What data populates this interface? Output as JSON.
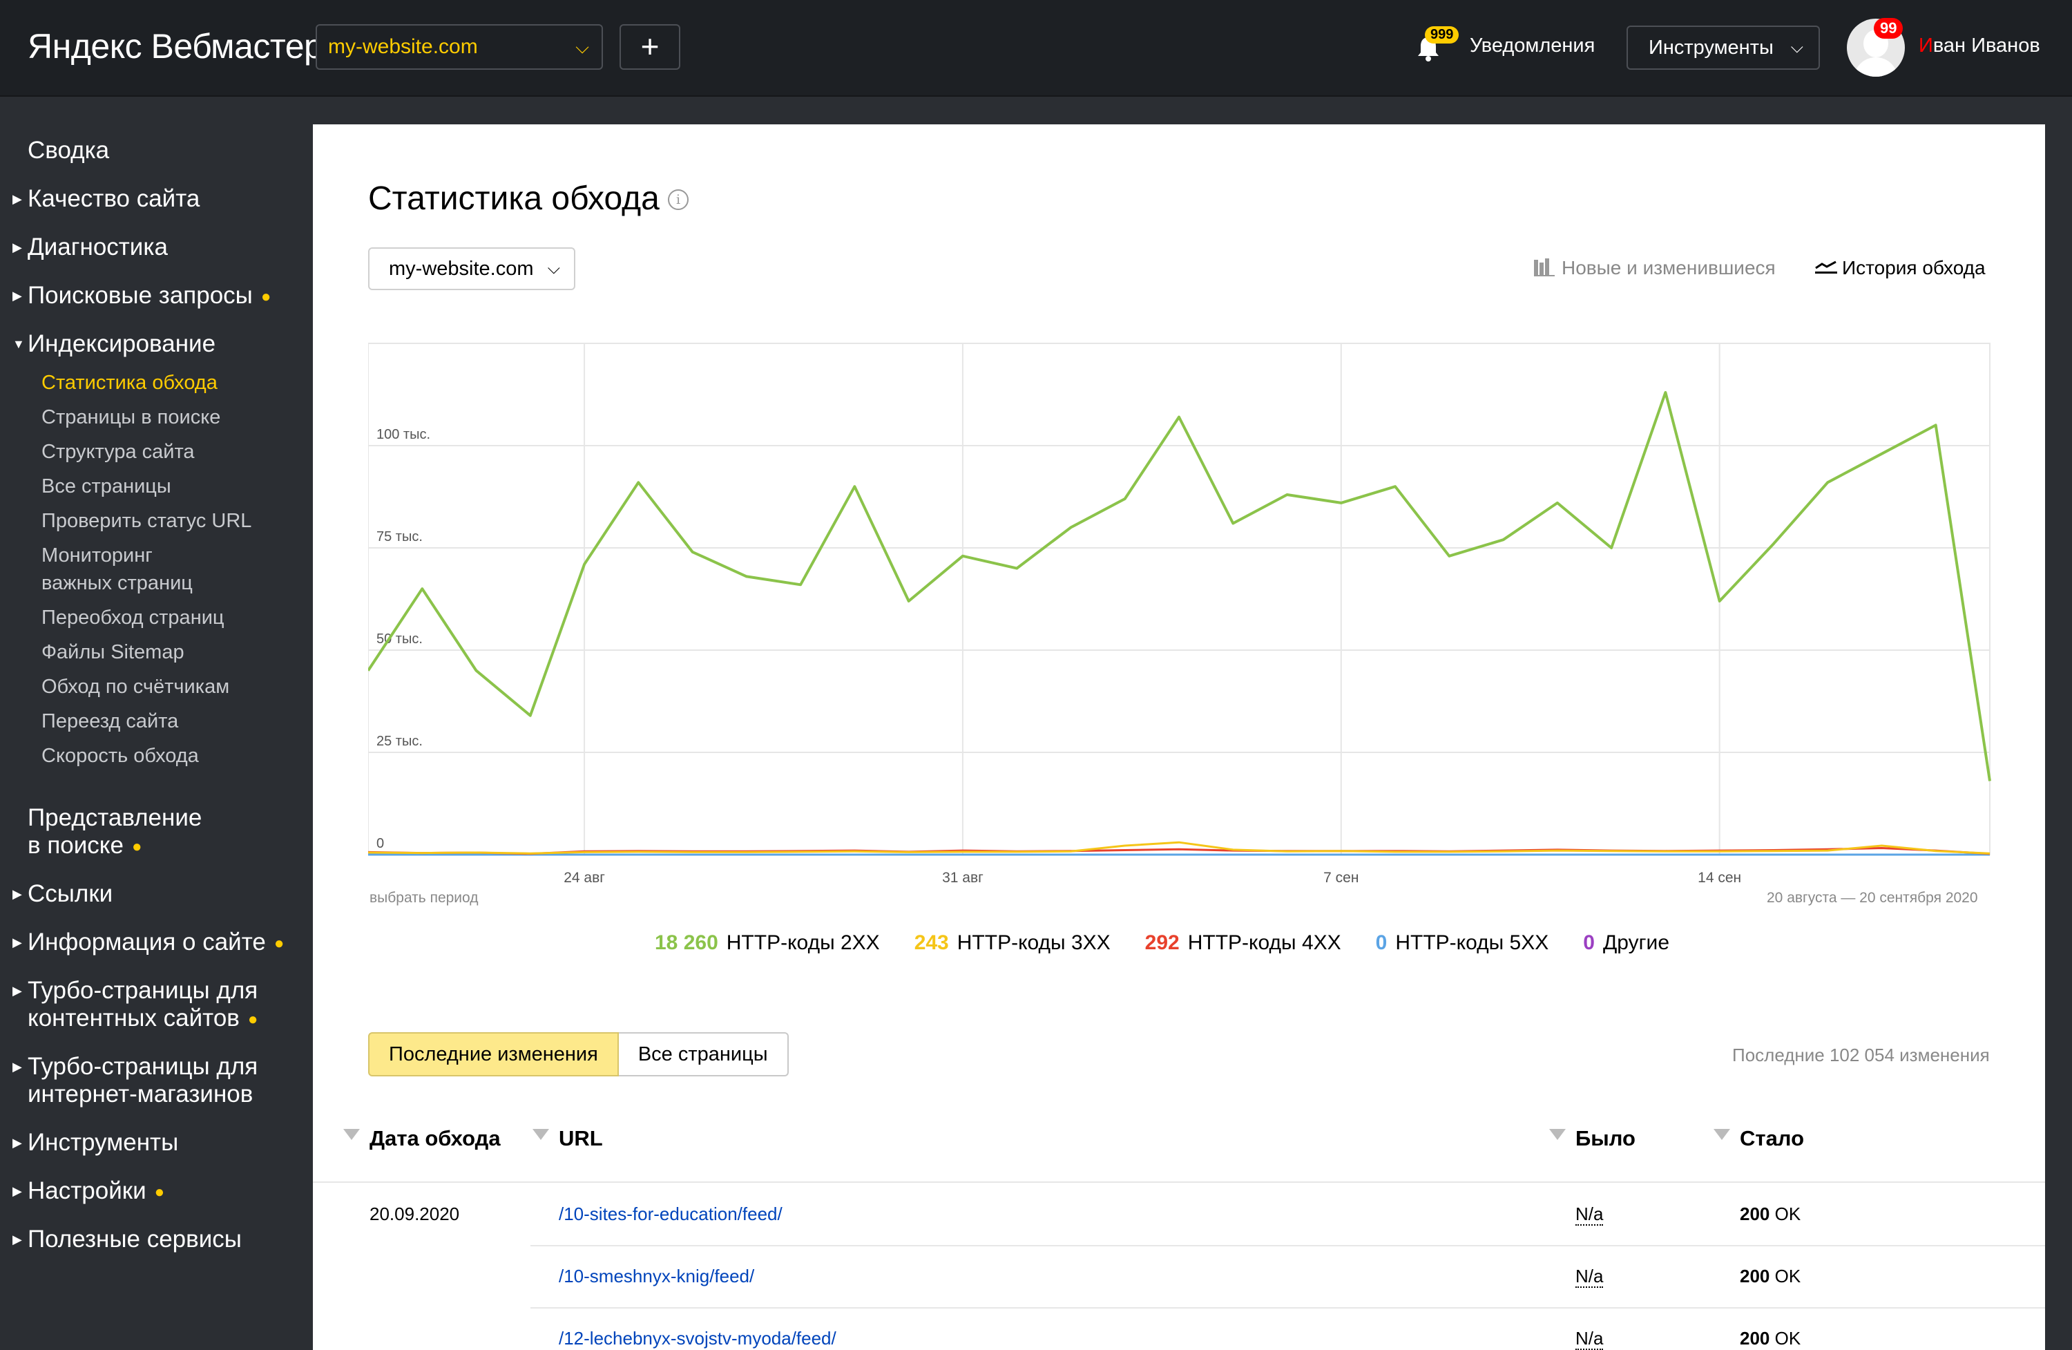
{
  "header": {
    "logo_brand": "Яндекс",
    "logo_product": "Вебмастер",
    "site": "my-website.com",
    "plus_label": "+",
    "notifications_badge": "999",
    "notifications_label": "Уведомления",
    "tools_label": "Инструменты",
    "user_badge": "99",
    "user_initial": "И",
    "user_rest": "ван Иванов"
  },
  "sidebar": {
    "summary": "Сводка",
    "quality": "Качество сайта",
    "diagnostics": "Диагностика",
    "queries": "Поисковые запросы",
    "indexing": "Индексирование",
    "sub": [
      "Статистика обхода",
      "Страницы в поиске",
      "Структура сайта",
      "Все страницы",
      "Проверить статус URL",
      "Мониторинг",
      "важных страниц",
      "Переобход страниц",
      "Файлы Sitemap",
      "Обход по счётчикам",
      "Переезд сайта",
      "Скорость обхода"
    ],
    "presentation_1": "Представление",
    "presentation_2": "в поиске",
    "links": "Ссылки",
    "site_info": "Информация о сайте",
    "turbo_content_1": "Турбо-страницы для",
    "turbo_content_2": "контентных сайтов",
    "turbo_shop_1": "Турбо-страницы для",
    "turbo_shop_2": "интернет-магазинов",
    "tools": "Инструменты",
    "settings": "Настройки",
    "services": "Полезные сервисы",
    "dot": "●"
  },
  "main": {
    "title": "Статистика обхода",
    "info_glyph": "i",
    "host": "my-website.com",
    "tab_new": "Новые и изменившиеся",
    "tab_history": "История обхода",
    "period_link": "выбрать период",
    "period_range": "20 августа — 20 сентября 2020",
    "segment_recent": "Последние изменения",
    "segment_all": "Все страницы",
    "changes_count": "Последние 102 054 изменения"
  },
  "legend": [
    {
      "value": "18 260",
      "label": "HTTP-коды 2XX",
      "color": "#8bc34a"
    },
    {
      "value": "243",
      "label": "HTTP-коды 3XX",
      "color": "#f5c518"
    },
    {
      "value": "292",
      "label": "HTTP-коды 4XX",
      "color": "#e8412c"
    },
    {
      "value": "0",
      "label": "HTTP-коды 5XX",
      "color": "#5ba4e5"
    },
    {
      "value": "0",
      "label": "Другие",
      "color": "#9b3fc2"
    }
  ],
  "table": {
    "headers": {
      "date": "Дата обхода",
      "url": "URL",
      "was": "Было",
      "now": "Стало"
    },
    "date": "20.09.2020",
    "rows": [
      {
        "url": "/10-sites-for-education/feed/",
        "was": "N/a",
        "code": "200",
        "status": "OK"
      },
      {
        "url": "/10-smeshnyx-knig/feed/",
        "was": "N/a",
        "code": "200",
        "status": "OK"
      },
      {
        "url": "/12-lechebnyx-svojstv-myoda/feed/",
        "was": "N/a",
        "code": "200",
        "status": "OK"
      }
    ]
  },
  "chart_data": {
    "type": "line",
    "ylim": [
      0,
      125000
    ],
    "y_ticks": [
      0,
      25000,
      50000,
      75000,
      100000
    ],
    "y_tick_labels": [
      "0",
      "25 тыс.",
      "50 тыс.",
      "75 тыс.",
      "100 тыс."
    ],
    "x_tick_labels": [
      {
        "day": 4,
        "label": "24 авг"
      },
      {
        "day": 11,
        "label": "31 авг"
      },
      {
        "day": 18,
        "label": "7 сен"
      },
      {
        "day": 25,
        "label": "14 сен"
      }
    ],
    "x_days": 31,
    "grid": true,
    "series": [
      {
        "name": "HTTP-коды 2XX",
        "color": "#8bc34a",
        "values": [
          45000,
          65000,
          45000,
          34000,
          71000,
          91000,
          74000,
          68000,
          66000,
          90000,
          62000,
          73000,
          70000,
          80000,
          87000,
          107000,
          81000,
          88000,
          86000,
          90000,
          73000,
          77000,
          86000,
          75000,
          113000,
          62000,
          76000,
          91000,
          98000,
          105000,
          18000
        ]
      },
      {
        "name": "HTTP-коды 3XX",
        "color": "#f5c518",
        "values": [
          500,
          400,
          500,
          300,
          600,
          700,
          600,
          600,
          700,
          800,
          600,
          700,
          700,
          800,
          2200,
          3000,
          1200,
          800,
          900,
          700,
          700,
          800,
          1000,
          900,
          800,
          800,
          900,
          1000,
          2200,
          900,
          300
        ]
      },
      {
        "name": "HTTP-коды 4XX",
        "color": "#e8412c",
        "values": [
          600,
          400,
          500,
          200,
          800,
          900,
          800,
          800,
          900,
          1000,
          700,
          1000,
          800,
          900,
          1100,
          1300,
          1000,
          900,
          900,
          900,
          800,
          1000,
          1200,
          1000,
          900,
          1000,
          1100,
          1300,
          1600,
          1000,
          200
        ]
      },
      {
        "name": "HTTP-коды 5XX",
        "color": "#5ba4e5",
        "values": [
          0,
          0,
          0,
          0,
          0,
          0,
          0,
          0,
          0,
          0,
          0,
          0,
          0,
          0,
          0,
          0,
          0,
          0,
          0,
          0,
          0,
          0,
          0,
          0,
          0,
          0,
          0,
          0,
          0,
          0,
          0
        ]
      },
      {
        "name": "Другие",
        "color": "#9b3fc2",
        "values": [
          0,
          0,
          0,
          0,
          0,
          0,
          0,
          0,
          0,
          0,
          0,
          0,
          0,
          0,
          0,
          0,
          0,
          0,
          0,
          0,
          0,
          0,
          0,
          0,
          0,
          0,
          0,
          0,
          0,
          0,
          0
        ]
      }
    ]
  }
}
